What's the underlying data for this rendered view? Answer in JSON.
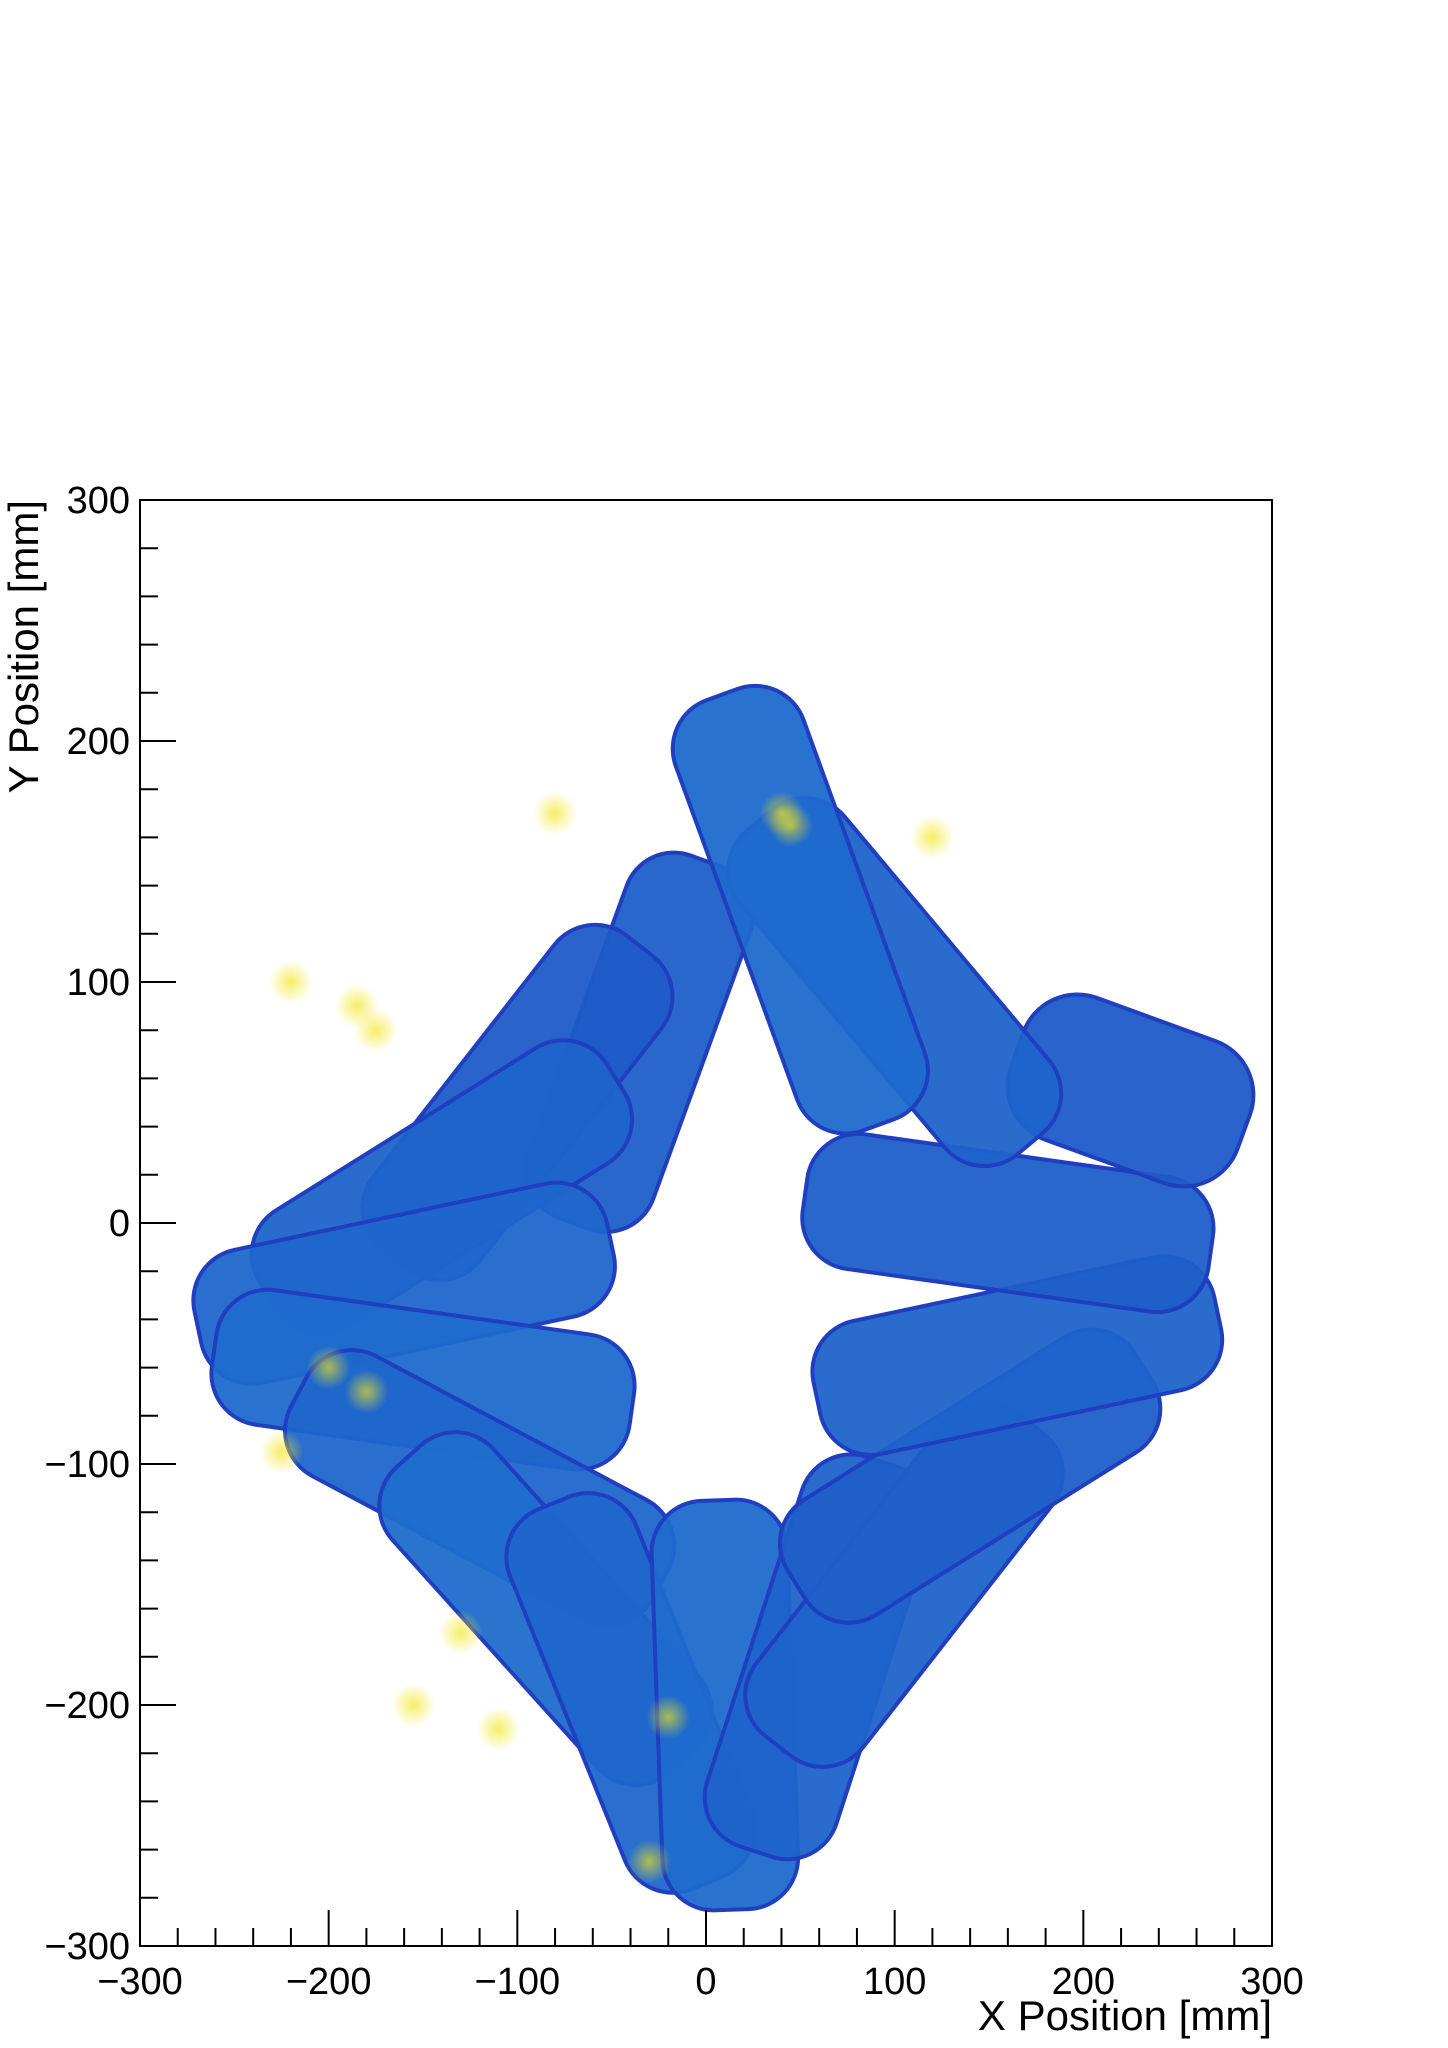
{
  "chart_data": {
    "type": "heatmap",
    "title": "",
    "xlabel": "X Position [mm]",
    "ylabel": "Y Position [mm]",
    "xlim": [
      -300,
      300
    ],
    "ylim": [
      -300,
      300
    ],
    "x_ticks": [
      -300,
      -200,
      -100,
      0,
      100,
      200,
      300
    ],
    "y_ticks": [
      -300,
      -200,
      -100,
      0,
      100,
      200,
      300
    ],
    "x_tick_labels": [
      "−300",
      "−200",
      "−100",
      "0",
      "100",
      "200",
      "300"
    ],
    "y_tick_labels": [
      "−300",
      "−200",
      "−100",
      "0",
      "100",
      "200",
      "300"
    ],
    "grid": false,
    "legend": "none",
    "colors": {
      "low": "#1f3fbf",
      "mid": "#1f86d6",
      "high": "#f2e51a"
    },
    "regions": [
      {
        "center": [
          -35,
          75
        ],
        "width": 70,
        "height": 160,
        "angle_deg": -20,
        "intensity": 0.45
      },
      {
        "center": [
          -100,
          50
        ],
        "width": 72,
        "height": 165,
        "angle_deg": -38,
        "intensity": 0.4
      },
      {
        "center": [
          -140,
          15
        ],
        "width": 72,
        "height": 170,
        "angle_deg": -58,
        "intensity": 0.5
      },
      {
        "center": [
          -160,
          -25
        ],
        "width": 72,
        "height": 175,
        "angle_deg": -78,
        "intensity": 0.55
      },
      {
        "center": [
          -150,
          -65
        ],
        "width": 72,
        "height": 175,
        "angle_deg": -98,
        "intensity": 0.6
      },
      {
        "center": [
          -120,
          -110
        ],
        "width": 72,
        "height": 170,
        "angle_deg": -118,
        "intensity": 0.55
      },
      {
        "center": [
          -85,
          -160
        ],
        "width": 72,
        "height": 170,
        "angle_deg": -138,
        "intensity": 0.65
      },
      {
        "center": [
          -40,
          -195
        ],
        "width": 72,
        "height": 170,
        "angle_deg": -158,
        "intensity": 0.55
      },
      {
        "center": [
          10,
          -200
        ],
        "width": 72,
        "height": 170,
        "angle_deg": -178,
        "intensity": 0.6
      },
      {
        "center": [
          60,
          -180
        ],
        "width": 72,
        "height": 170,
        "angle_deg": 162,
        "intensity": 0.5
      },
      {
        "center": [
          105,
          -150
        ],
        "width": 72,
        "height": 170,
        "angle_deg": 142,
        "intensity": 0.5
      },
      {
        "center": [
          140,
          -105
        ],
        "width": 72,
        "height": 170,
        "angle_deg": 122,
        "intensity": 0.45
      },
      {
        "center": [
          165,
          -55
        ],
        "width": 72,
        "height": 170,
        "angle_deg": 102,
        "intensity": 0.5
      },
      {
        "center": [
          160,
          0
        ],
        "width": 72,
        "height": 170,
        "angle_deg": 82,
        "intensity": 0.45
      },
      {
        "center": [
          225,
          55
        ],
        "width": 80,
        "height": 100,
        "angle_deg": 70,
        "intensity": 0.4
      },
      {
        "center": [
          100,
          100
        ],
        "width": 72,
        "height": 175,
        "angle_deg": 40,
        "intensity": 0.5
      },
      {
        "center": [
          50,
          130
        ],
        "width": 72,
        "height": 190,
        "angle_deg": 20,
        "intensity": 0.6
      }
    ],
    "hotspots": [
      [
        45,
        165
      ],
      [
        40,
        170
      ],
      [
        -185,
        90
      ],
      [
        -175,
        80
      ],
      [
        -220,
        100
      ],
      [
        -200,
        -60
      ],
      [
        -180,
        -70
      ],
      [
        -225,
        -95
      ],
      [
        -130,
        -170
      ],
      [
        -155,
        -200
      ],
      [
        -110,
        -210
      ],
      [
        -20,
        -205
      ],
      [
        -30,
        -265
      ],
      [
        120,
        160
      ],
      [
        -80,
        170
      ]
    ]
  }
}
